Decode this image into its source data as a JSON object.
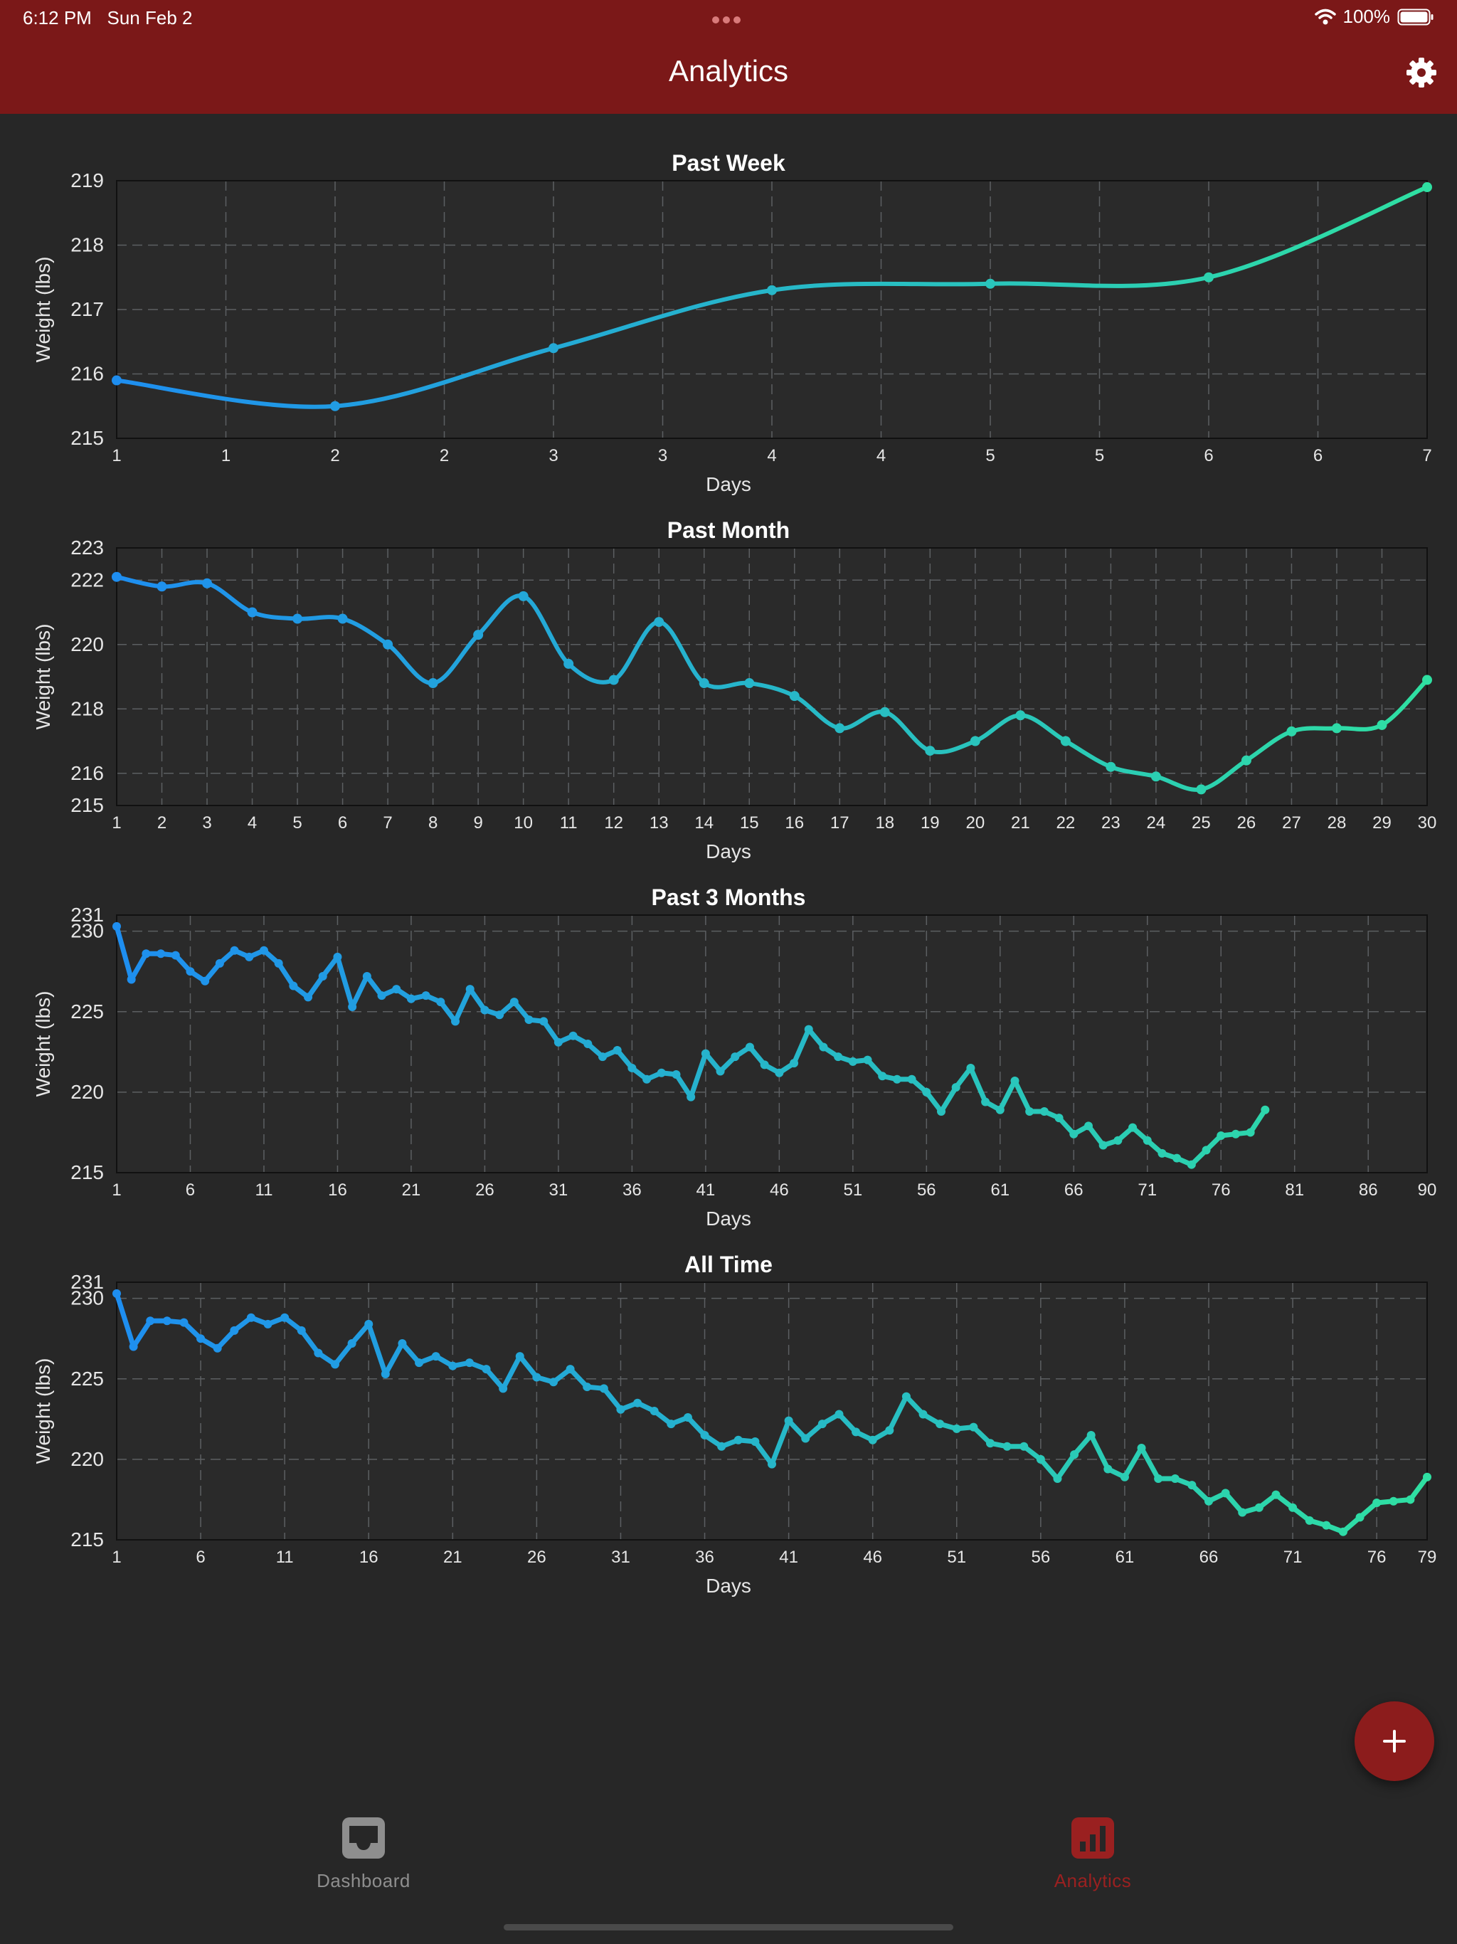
{
  "status_bar": {
    "time": "6:12 PM",
    "date": "Sun Feb 2",
    "battery": "100%"
  },
  "header": {
    "title": "Analytics",
    "settings_icon": "gear-icon"
  },
  "colors": {
    "header_bg": "#7b1818",
    "line_start": "#1e8ef0",
    "line_end": "#2fe0a2",
    "active_tab": "#9a2020",
    "inactive_tab": "#8e8e8e"
  },
  "chart_data": [
    {
      "type": "line",
      "title": "Past Week",
      "xlabel": "Days",
      "ylabel": "Weight (lbs)",
      "smooth": true,
      "x": [
        1,
        2,
        3,
        4,
        5,
        6,
        7
      ],
      "values": [
        215.9,
        215.5,
        216.4,
        217.3,
        217.4,
        217.5,
        218.9
      ],
      "xlim": [
        1,
        7
      ],
      "ylim": [
        215,
        219
      ],
      "x_tick_labels": [
        "1",
        "1",
        "2",
        "2",
        "3",
        "3",
        "4",
        "4",
        "5",
        "5",
        "6",
        "6",
        "7"
      ],
      "y_ticks": [
        215,
        216,
        217,
        218,
        219
      ],
      "grid": true
    },
    {
      "type": "line",
      "title": "Past Month",
      "xlabel": "Days",
      "ylabel": "Weight (lbs)",
      "smooth": true,
      "x": [
        1,
        2,
        3,
        4,
        5,
        6,
        7,
        8,
        9,
        10,
        11,
        12,
        13,
        14,
        15,
        16,
        17,
        18,
        19,
        20,
        21,
        22,
        23,
        24,
        25,
        26,
        27,
        28,
        29,
        30
      ],
      "values": [
        222.1,
        221.8,
        221.9,
        221.0,
        220.8,
        220.8,
        220.0,
        218.8,
        220.3,
        221.5,
        219.4,
        218.9,
        220.7,
        218.8,
        218.8,
        218.4,
        217.4,
        217.9,
        216.7,
        217.0,
        217.8,
        217.0,
        216.2,
        215.9,
        215.5,
        216.4,
        217.3,
        217.4,
        217.5,
        218.9
      ],
      "xlim": [
        1,
        30
      ],
      "ylim": [
        215,
        223
      ],
      "x_ticks": [
        1,
        2,
        3,
        4,
        5,
        6,
        7,
        8,
        9,
        10,
        11,
        12,
        13,
        14,
        15,
        16,
        17,
        18,
        19,
        20,
        21,
        22,
        23,
        24,
        25,
        26,
        27,
        28,
        29,
        30
      ],
      "y_ticks": [
        215,
        216,
        218,
        220,
        222,
        223
      ],
      "grid": true
    },
    {
      "type": "line",
      "title": "Past 3 Months",
      "xlabel": "Days",
      "ylabel": "Weight (lbs)",
      "smooth": false,
      "values": [
        230.3,
        227.0,
        228.6,
        228.6,
        228.5,
        227.5,
        226.9,
        228.0,
        228.8,
        228.4,
        228.8,
        228.0,
        226.6,
        225.9,
        227.2,
        228.4,
        225.3,
        227.2,
        226.0,
        226.4,
        225.8,
        226.0,
        225.6,
        224.4,
        226.4,
        225.1,
        224.8,
        225.6,
        224.5,
        224.4,
        223.1,
        223.5,
        223.0,
        222.2,
        222.6,
        221.5,
        220.8,
        221.2,
        221.1,
        219.7,
        222.4,
        221.3,
        222.2,
        222.8,
        221.7,
        221.2,
        221.8,
        223.9,
        222.8,
        222.2,
        221.9,
        222.0,
        221.0,
        220.8,
        220.8,
        220.0,
        218.8,
        220.3,
        221.5,
        219.4,
        218.9,
        220.7,
        218.8,
        218.8,
        218.4,
        217.4,
        217.9,
        216.7,
        217.0,
        217.8,
        217.0,
        216.2,
        215.9,
        215.5,
        216.4,
        217.3,
        217.4,
        217.5,
        218.9
      ],
      "xlim": [
        1,
        90
      ],
      "ylim": [
        215,
        231
      ],
      "x_ticks": [
        1,
        6,
        11,
        16,
        21,
        26,
        31,
        36,
        41,
        46,
        51,
        56,
        61,
        66,
        71,
        76,
        81,
        86,
        90
      ],
      "y_ticks": [
        215,
        220,
        225,
        230,
        231
      ],
      "grid": true
    },
    {
      "type": "line",
      "title": "All Time",
      "xlabel": "Days",
      "ylabel": "Weight (lbs)",
      "smooth": false,
      "values": [
        230.3,
        227.0,
        228.6,
        228.6,
        228.5,
        227.5,
        226.9,
        228.0,
        228.8,
        228.4,
        228.8,
        228.0,
        226.6,
        225.9,
        227.2,
        228.4,
        225.3,
        227.2,
        226.0,
        226.4,
        225.8,
        226.0,
        225.6,
        224.4,
        226.4,
        225.1,
        224.8,
        225.6,
        224.5,
        224.4,
        223.1,
        223.5,
        223.0,
        222.2,
        222.6,
        221.5,
        220.8,
        221.2,
        221.1,
        219.7,
        222.4,
        221.3,
        222.2,
        222.8,
        221.7,
        221.2,
        221.8,
        223.9,
        222.8,
        222.2,
        221.9,
        222.0,
        221.0,
        220.8,
        220.8,
        220.0,
        218.8,
        220.3,
        221.5,
        219.4,
        218.9,
        220.7,
        218.8,
        218.8,
        218.4,
        217.4,
        217.9,
        216.7,
        217.0,
        217.8,
        217.0,
        216.2,
        215.9,
        215.5,
        216.4,
        217.3,
        217.4,
        217.5,
        218.9
      ],
      "xlim": [
        1,
        79
      ],
      "ylim": [
        215,
        231
      ],
      "x_ticks": [
        1,
        6,
        11,
        16,
        21,
        26,
        31,
        36,
        41,
        46,
        51,
        56,
        61,
        66,
        71,
        76,
        79
      ],
      "y_ticks": [
        215,
        220,
        225,
        230,
        231
      ],
      "grid": true
    }
  ],
  "fab": {
    "label": "+",
    "icon": "plus-icon"
  },
  "tabs": [
    {
      "label": "Dashboard",
      "icon": "inbox-icon",
      "active": false
    },
    {
      "label": "Analytics",
      "icon": "bar-chart-icon",
      "active": true
    }
  ]
}
